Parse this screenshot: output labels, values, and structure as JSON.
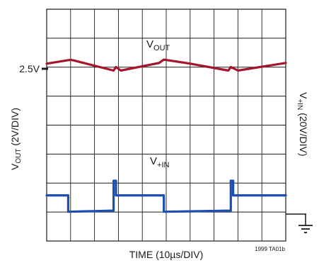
{
  "chart_data": {
    "type": "line",
    "title": "",
    "xlabel": "TIME (10µs/DIV)",
    "ylabel_left_main": "V",
    "ylabel_left_sub": "OUT",
    "ylabel_left_suffix": " (2V/DIV)",
    "ylabel_right_main": "V",
    "ylabel_right_sub": "+IN",
    "ylabel_right_suffix": " (20V/DIV)",
    "reference_label": "2.5V",
    "figure_id": "1999 TA01b",
    "grid": true,
    "x_divisions": 10,
    "y_divisions": 8,
    "xlim": [
      0,
      100
    ],
    "series": [
      {
        "name_main": "V",
        "name_sub": "OUT",
        "color": "#a5152b",
        "axis": "left",
        "x": [
          0,
          10,
          12,
          28,
          29,
          31,
          47,
          49,
          59,
          76,
          77,
          80,
          100
        ],
        "y": [
          2.85,
          3.12,
          3.05,
          2.38,
          2.62,
          2.38,
          2.9,
          3.13,
          2.88,
          2.38,
          2.62,
          2.38,
          2.9
        ]
      },
      {
        "name_main": "V",
        "name_sub": "+IN",
        "color": "#1c4fb0",
        "axis": "right",
        "x": [
          0,
          9,
          9,
          28,
          28,
          29,
          29,
          49,
          49,
          77,
          77,
          78,
          78,
          100
        ],
        "y": [
          12.9,
          12.9,
          1.6,
          2.4,
          23.0,
          23.0,
          12.9,
          12.9,
          1.6,
          2.4,
          23.0,
          23.0,
          12.9,
          12.9
        ]
      }
    ]
  }
}
